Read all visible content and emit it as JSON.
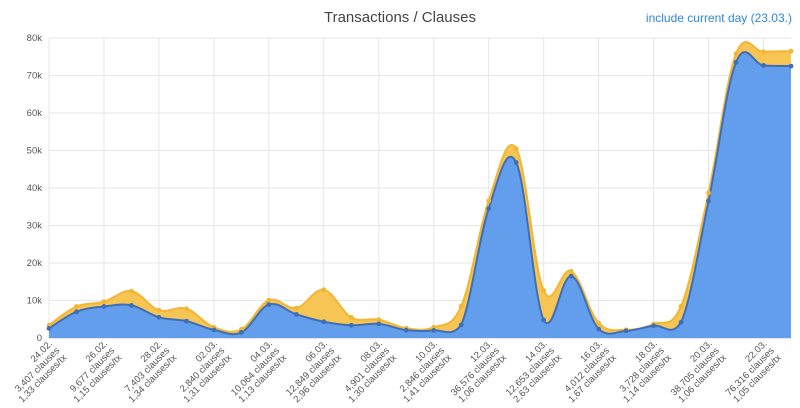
{
  "header": {
    "title": "Transactions / Clauses",
    "toggle_label": "include current day (23.03.)"
  },
  "colors": {
    "clauses_fill": "#f7c24a",
    "clauses_line": "#f2b632",
    "tx_fill": "#5b9cf6",
    "tx_line": "#3d6fb8",
    "grid": "#e6e6e6",
    "link": "#2f87d8"
  },
  "chart_data": {
    "type": "area",
    "title": "Transactions / Clauses",
    "ylim": [
      0,
      80000
    ],
    "y_ticks": [
      "0",
      "10k",
      "20k",
      "30k",
      "40k",
      "50k",
      "60k",
      "70k",
      "80k"
    ],
    "grid": true,
    "x": [
      "24.02.",
      "25.02.",
      "26.02.",
      "27.02.",
      "28.02.",
      "01.03.",
      "02.03.",
      "03.03.",
      "04.03.",
      "05.03.",
      "06.03.",
      "07.03.",
      "08.03.",
      "09.03.",
      "10.03.",
      "11.03.",
      "12.03.",
      "13.03.",
      "14.03.",
      "15.03.",
      "16.03.",
      "17.03.",
      "18.03.",
      "19.03.",
      "20.03.",
      "21.03.",
      "22.03.",
      "23.03."
    ],
    "x_labels": [
      {
        "index": 0,
        "date": "24.02.",
        "clauses": "3,407 clauses",
        "ratio": "1,33 clauses/tx"
      },
      {
        "index": 2,
        "date": "26.02.",
        "clauses": "9,677 clauses",
        "ratio": "1,15 clauses/tx"
      },
      {
        "index": 4,
        "date": "28.02.",
        "clauses": "7,403 clauses",
        "ratio": "1,34 clauses/tx"
      },
      {
        "index": 6,
        "date": "02.03.",
        "clauses": "2,840 clauses",
        "ratio": "1,31 clauses/tx"
      },
      {
        "index": 8,
        "date": "04.03.",
        "clauses": "10,064 clauses",
        "ratio": "1,13 clauses/tx"
      },
      {
        "index": 10,
        "date": "06.03.",
        "clauses": "12,849 clauses",
        "ratio": "2,96 clauses/tx"
      },
      {
        "index": 12,
        "date": "08.03.",
        "clauses": "4,901 clauses",
        "ratio": "1,30 clauses/tx"
      },
      {
        "index": 14,
        "date": "10.03.",
        "clauses": "2,846 clauses",
        "ratio": "1,41 clauses/tx"
      },
      {
        "index": 16,
        "date": "12.03.",
        "clauses": "36,576 clauses",
        "ratio": "1,06 clauses/tx"
      },
      {
        "index": 18,
        "date": "14.03.",
        "clauses": "12,653 clauses",
        "ratio": "2,63 clauses/tx"
      },
      {
        "index": 20,
        "date": "16.03.",
        "clauses": "4,012 clauses",
        "ratio": "1,67 clauses/tx"
      },
      {
        "index": 22,
        "date": "18.03.",
        "clauses": "3,728 clauses",
        "ratio": "1,14 clauses/tx"
      },
      {
        "index": 24,
        "date": "20.03.",
        "clauses": "38,705 clauses",
        "ratio": "1,06 clauses/tx"
      },
      {
        "index": 26,
        "date": "22.03.",
        "clauses": "76,316 clauses",
        "ratio": "1,05 clauses/tx"
      }
    ],
    "series": [
      {
        "key": "clauses",
        "values": [
          3407,
          8400,
          9677,
          12500,
          7403,
          7800,
          2840,
          2300,
          10064,
          8000,
          12849,
          5500,
          4901,
          2600,
          2846,
          8500,
          36576,
          50500,
          12653,
          17800,
          4012,
          2200,
          3728,
          8500,
          38705,
          75800,
          76316,
          76500
        ]
      },
      {
        "key": "transactions",
        "values": [
          2560,
          7000,
          8415,
          8700,
          5525,
          4500,
          2168,
          1500,
          8906,
          6300,
          4341,
          3400,
          3770,
          2100,
          2018,
          3500,
          34506,
          46800,
          4811,
          16500,
          2402,
          1900,
          3270,
          4200,
          36514,
          73500,
          72682,
          72500
        ]
      }
    ]
  }
}
